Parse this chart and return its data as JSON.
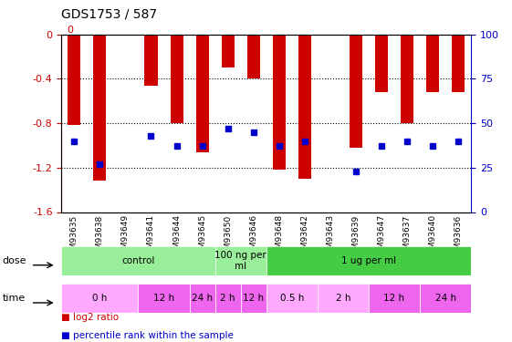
{
  "title": "GDS1753 / 587",
  "samples": [
    "GSM93635",
    "GSM93638",
    "GSM93649",
    "GSM93641",
    "GSM93644",
    "GSM93645",
    "GSM93650",
    "GSM93646",
    "GSM93648",
    "GSM93642",
    "GSM93643",
    "GSM93639",
    "GSM93647",
    "GSM93637",
    "GSM93640",
    "GSM93636"
  ],
  "log2_ratio": [
    -0.82,
    -1.32,
    0.0,
    -0.46,
    -0.8,
    -1.06,
    -0.3,
    -0.4,
    -1.22,
    -1.3,
    0.0,
    -1.02,
    -0.52,
    -0.8,
    -0.52,
    -0.52
  ],
  "pct_rank": [
    40,
    27,
    0,
    43,
    37,
    37,
    47,
    45,
    37,
    40,
    0,
    23,
    37,
    40,
    37,
    40
  ],
  "ylim_left": [
    -1.6,
    0
  ],
  "ylim_right": [
    0,
    100
  ],
  "bar_color": "#cc0000",
  "dot_color": "#0000cc",
  "gridline_color": "#000000",
  "dose_groups": [
    {
      "label": "control",
      "start": 0,
      "end": 6,
      "color": "#99ee99"
    },
    {
      "label": "100 ng per\nml",
      "start": 6,
      "end": 8,
      "color": "#99ee99"
    },
    {
      "label": "1 ug per ml",
      "start": 8,
      "end": 16,
      "color": "#44cc44"
    }
  ],
  "time_groups": [
    {
      "label": "0 h",
      "start": 0,
      "end": 3,
      "color": "#ffaaff"
    },
    {
      "label": "12 h",
      "start": 3,
      "end": 5,
      "color": "#ee66ee"
    },
    {
      "label": "24 h",
      "start": 5,
      "end": 6,
      "color": "#ee66ee"
    },
    {
      "label": "2 h",
      "start": 6,
      "end": 7,
      "color": "#ee66ee"
    },
    {
      "label": "12 h",
      "start": 7,
      "end": 8,
      "color": "#ee66ee"
    },
    {
      "label": "0.5 h",
      "start": 8,
      "end": 10,
      "color": "#ffaaff"
    },
    {
      "label": "2 h",
      "start": 10,
      "end": 12,
      "color": "#ffaaff"
    },
    {
      "label": "12 h",
      "start": 12,
      "end": 14,
      "color": "#ee66ee"
    },
    {
      "label": "24 h",
      "start": 14,
      "end": 16,
      "color": "#ee66ee"
    }
  ],
  "legend_items": [
    {
      "label": "log2 ratio",
      "color": "#cc0000"
    },
    {
      "label": "percentile rank within the sample",
      "color": "#0000cc"
    }
  ],
  "bg_color": "#ffffff",
  "plot_bg": "#ffffff",
  "tick_label_color_left": "#cc0000",
  "tick_label_color_right": "#0000cc",
  "axis_top_label_left": "0",
  "axis_top_label_right": "100%"
}
